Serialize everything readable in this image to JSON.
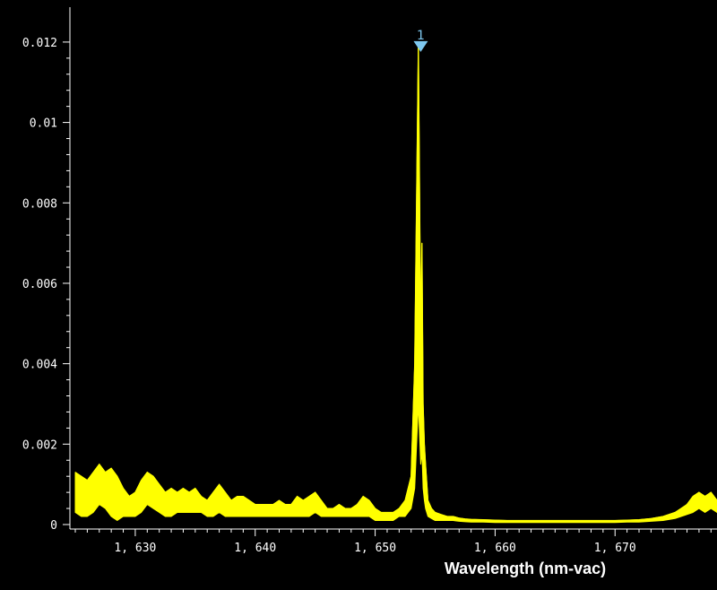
{
  "chart_data": {
    "type": "line",
    "title": "",
    "xlabel": "Wavelength (nm-vac)",
    "ylabel": "",
    "xlim": [
      1625,
      1678.5
    ],
    "ylim": [
      0,
      0.0126
    ],
    "x_ticks": [
      1630,
      1640,
      1650,
      1660,
      1670
    ],
    "x_tick_labels": [
      "1, 630",
      "1, 640",
      "1, 650",
      "1, 660",
      "1, 670"
    ],
    "y_ticks": [
      0,
      0.002,
      0.004,
      0.006,
      0.008,
      0.01,
      0.012
    ],
    "y_tick_labels": [
      "0",
      "0.002",
      "0.004",
      "0.006",
      "0.008",
      "0.01",
      "0.012"
    ],
    "grid": false,
    "series": [
      {
        "color": "#ffff00",
        "x": [
          1625.0,
          1625.5,
          1626.0,
          1626.5,
          1627.0,
          1627.5,
          1628.0,
          1628.5,
          1629.0,
          1629.5,
          1630.0,
          1630.5,
          1631.0,
          1631.5,
          1632.0,
          1632.5,
          1633.0,
          1633.5,
          1634.0,
          1634.5,
          1635.0,
          1635.5,
          1636.0,
          1636.5,
          1637.0,
          1637.5,
          1638.0,
          1638.5,
          1639.0,
          1639.5,
          1640.0,
          1640.5,
          1641.0,
          1641.5,
          1642.0,
          1642.5,
          1643.0,
          1643.5,
          1644.0,
          1644.5,
          1645.0,
          1645.5,
          1646.0,
          1646.5,
          1647.0,
          1647.5,
          1648.0,
          1648.5,
          1649.0,
          1649.5,
          1650.0,
          1650.5,
          1651.0,
          1651.5,
          1652.0,
          1652.5,
          1653.0,
          1653.3,
          1653.6,
          1653.8,
          1653.9,
          1654.0,
          1654.1,
          1654.2,
          1654.4,
          1654.7,
          1655.0,
          1655.5,
          1656.0,
          1656.5,
          1657.0,
          1657.5,
          1658.0,
          1659.0,
          1660.0,
          1661.0,
          1662.0,
          1663.0,
          1664.0,
          1665.0,
          1666.0,
          1667.0,
          1668.0,
          1669.0,
          1670.0,
          1671.0,
          1672.0,
          1673.0,
          1674.0,
          1675.0,
          1675.5,
          1676.0,
          1676.5,
          1677.0,
          1677.5,
          1678.0,
          1678.5
        ],
        "y_max": [
          0.0013,
          0.0012,
          0.0011,
          0.0013,
          0.0015,
          0.0013,
          0.0014,
          0.0012,
          0.0009,
          0.0007,
          0.0008,
          0.0011,
          0.0013,
          0.0012,
          0.001,
          0.0008,
          0.0009,
          0.0008,
          0.0009,
          0.0008,
          0.0009,
          0.0007,
          0.0006,
          0.0008,
          0.001,
          0.0008,
          0.0006,
          0.0007,
          0.0007,
          0.0006,
          0.0005,
          0.0005,
          0.0005,
          0.0005,
          0.0006,
          0.0005,
          0.0005,
          0.0007,
          0.0006,
          0.0007,
          0.0008,
          0.0006,
          0.0004,
          0.0004,
          0.0005,
          0.0004,
          0.0004,
          0.0005,
          0.0007,
          0.0006,
          0.0004,
          0.0003,
          0.0003,
          0.0003,
          0.0004,
          0.0006,
          0.0012,
          0.004,
          0.012,
          0.0048,
          0.007,
          0.003,
          0.002,
          0.0015,
          0.0006,
          0.0004,
          0.0003,
          0.00025,
          0.0002,
          0.0002,
          0.00016,
          0.00014,
          0.00013,
          0.00012,
          0.00011,
          0.0001,
          0.0001,
          0.0001,
          0.0001,
          0.0001,
          0.0001,
          0.0001,
          0.0001,
          0.0001,
          0.0001,
          0.00011,
          0.00012,
          0.00015,
          0.0002,
          0.0003,
          0.0004,
          0.0005,
          0.0007,
          0.0008,
          0.0007,
          0.0008,
          0.0006
        ],
        "y_min": [
          0.0003,
          0.0002,
          0.0002,
          0.0003,
          0.0005,
          0.0004,
          0.0002,
          0.0001,
          0.0002,
          0.0002,
          0.0002,
          0.0003,
          0.0005,
          0.0004,
          0.0003,
          0.0002,
          0.0002,
          0.0003,
          0.0003,
          0.0003,
          0.0003,
          0.0003,
          0.0002,
          0.0002,
          0.0003,
          0.0002,
          0.0002,
          0.0002,
          0.0002,
          0.0002,
          0.0002,
          0.0002,
          0.0002,
          0.0002,
          0.0002,
          0.0002,
          0.0002,
          0.0002,
          0.0002,
          0.0002,
          0.0003,
          0.0002,
          0.0002,
          0.0002,
          0.0002,
          0.0002,
          0.0002,
          0.0002,
          0.0002,
          0.0002,
          0.0001,
          0.0001,
          0.0001,
          0.0001,
          0.0002,
          0.0002,
          0.0004,
          0.0009,
          0.003,
          0.0015,
          0.0018,
          0.0009,
          0.0006,
          0.0004,
          0.0002,
          0.00015,
          0.0001,
          0.0001,
          0.0001,
          0.0001,
          8e-05,
          7e-05,
          6e-05,
          6e-05,
          5e-05,
          5e-05,
          5e-05,
          5e-05,
          5e-05,
          5e-05,
          5e-05,
          5e-05,
          5e-05,
          5e-05,
          5e-05,
          6e-05,
          6e-05,
          8e-05,
          0.0001,
          0.00015,
          0.0002,
          0.00025,
          0.0003,
          0.0004,
          0.0003,
          0.0004,
          0.0003
        ]
      }
    ],
    "markers": [
      {
        "label": "1",
        "x": 1653.8,
        "y": 0.012,
        "color": "#7ec8f0"
      }
    ]
  }
}
